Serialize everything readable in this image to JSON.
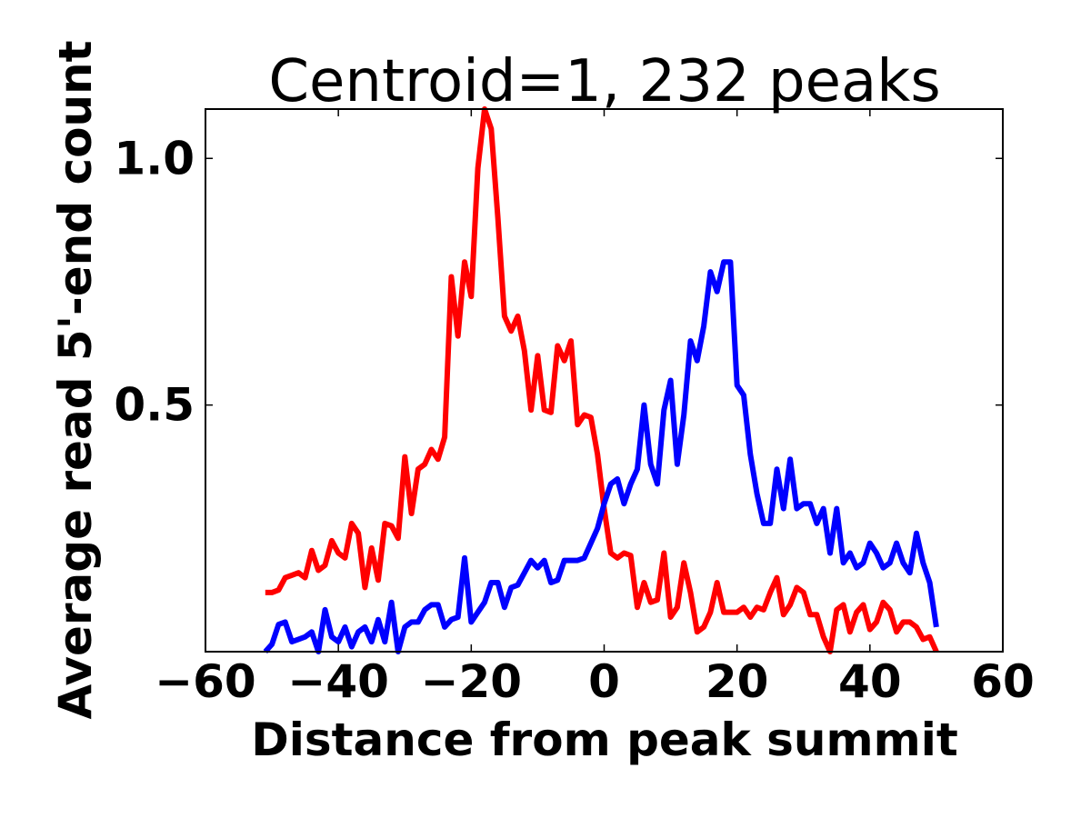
{
  "chart_data": {
    "type": "line",
    "title": "Centroid=1, 232 peaks",
    "xlabel": "Distance from peak summit",
    "ylabel": "Average read 5'-end count",
    "xlim": [
      -60,
      60
    ],
    "ylim": [
      0.0,
      1.1
    ],
    "xticks": [
      -60,
      -40,
      -20,
      0,
      20,
      40,
      60
    ],
    "xtick_labels": [
      "−60",
      "−40",
      "−20",
      "0",
      "20",
      "40",
      "60"
    ],
    "yticks": [
      0.5,
      1.0
    ],
    "ytick_labels": [
      "0.5",
      "1.0"
    ],
    "grid": false,
    "legend": "none",
    "x": [
      -51,
      -50,
      -49,
      -48,
      -47,
      -46,
      -45,
      -44,
      -43,
      -42,
      -41,
      -40,
      -39,
      -38,
      -37,
      -36,
      -35,
      -34,
      -33,
      -32,
      -31,
      -30,
      -29,
      -28,
      -27,
      -26,
      -25,
      -24,
      -23,
      -22,
      -21,
      -20,
      -19,
      -18,
      -17,
      -16,
      -15,
      -14,
      -13,
      -12,
      -11,
      -10,
      -9,
      -8,
      -7,
      -6,
      -5,
      -4,
      -3,
      -2,
      -1,
      0,
      1,
      2,
      3,
      4,
      5,
      6,
      7,
      8,
      9,
      10,
      11,
      12,
      13,
      14,
      15,
      16,
      17,
      18,
      19,
      20,
      21,
      22,
      23,
      24,
      25,
      26,
      27,
      28,
      29,
      30,
      31,
      32,
      33,
      34,
      35,
      36,
      37,
      38,
      39,
      40,
      41,
      42,
      43,
      44,
      45,
      46,
      47,
      48,
      49,
      50
    ],
    "series": [
      {
        "color": "#ff0000",
        "values": [
          0.12,
          0.12,
          0.125,
          0.15,
          0.155,
          0.16,
          0.15,
          0.205,
          0.165,
          0.175,
          0.225,
          0.2,
          0.19,
          0.26,
          0.24,
          0.13,
          0.21,
          0.145,
          0.26,
          0.255,
          0.23,
          0.395,
          0.28,
          0.37,
          0.38,
          0.41,
          0.39,
          0.435,
          0.76,
          0.64,
          0.79,
          0.72,
          0.98,
          1.1,
          1.06,
          0.88,
          0.68,
          0.65,
          0.68,
          0.61,
          0.49,
          0.6,
          0.49,
          0.485,
          0.62,
          0.59,
          0.63,
          0.46,
          0.48,
          0.475,
          0.4,
          0.29,
          0.2,
          0.19,
          0.2,
          0.195,
          0.09,
          0.14,
          0.1,
          0.105,
          0.2,
          0.07,
          0.09,
          0.18,
          0.12,
          0.04,
          0.05,
          0.08,
          0.14,
          0.08,
          0.08,
          0.08,
          0.09,
          0.07,
          0.09,
          0.085,
          0.12,
          0.15,
          0.075,
          0.095,
          0.13,
          0.12,
          0.075,
          0.075,
          0.03,
          0.0,
          0.085,
          0.095,
          0.04,
          0.08,
          0.095,
          0.045,
          0.06,
          0.1,
          0.085,
          0.04,
          0.06,
          0.06,
          0.05,
          0.025,
          0.03,
          0.0
        ]
      },
      {
        "color": "#0000ff",
        "values": [
          0.0,
          0.015,
          0.055,
          0.06,
          0.02,
          0.025,
          0.03,
          0.04,
          0.0,
          0.085,
          0.03,
          0.02,
          0.05,
          0.01,
          0.04,
          0.05,
          0.02,
          0.065,
          0.02,
          0.1,
          0.0,
          0.05,
          0.06,
          0.06,
          0.085,
          0.095,
          0.095,
          0.05,
          0.065,
          0.07,
          0.19,
          0.06,
          0.08,
          0.1,
          0.14,
          0.14,
          0.09,
          0.13,
          0.135,
          0.16,
          0.185,
          0.17,
          0.185,
          0.14,
          0.145,
          0.185,
          0.185,
          0.185,
          0.19,
          0.22,
          0.25,
          0.3,
          0.34,
          0.35,
          0.3,
          0.34,
          0.37,
          0.5,
          0.38,
          0.34,
          0.49,
          0.55,
          0.38,
          0.48,
          0.63,
          0.59,
          0.66,
          0.77,
          0.73,
          0.79,
          0.79,
          0.54,
          0.52,
          0.4,
          0.32,
          0.26,
          0.26,
          0.37,
          0.29,
          0.39,
          0.29,
          0.3,
          0.3,
          0.26,
          0.29,
          0.2,
          0.29,
          0.18,
          0.2,
          0.17,
          0.18,
          0.22,
          0.2,
          0.17,
          0.18,
          0.22,
          0.18,
          0.16,
          0.24,
          0.18,
          0.14,
          0.05
        ]
      }
    ]
  }
}
